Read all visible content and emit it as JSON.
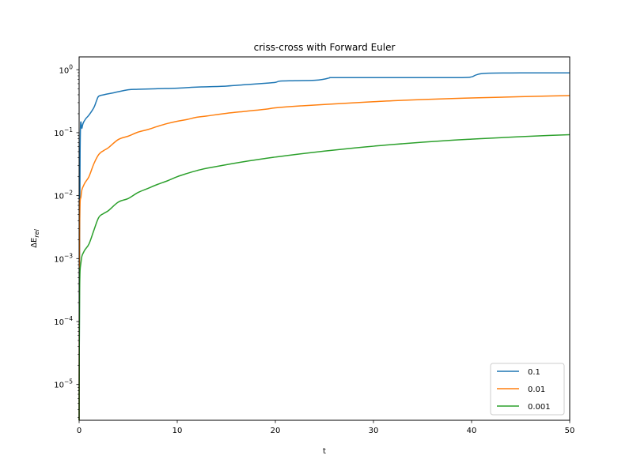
{
  "chart_data": {
    "type": "line",
    "title": "criss-cross with Forward Euler",
    "xlabel": "t",
    "ylabel": "ΔE",
    "ylabel_sub": "rel",
    "xlim": [
      0,
      50
    ],
    "ylim": [
      2.7e-06,
      1.6
    ],
    "yscale": "log",
    "grid": false,
    "legend_position": "lower-right",
    "x_ticks": [
      {
        "value": 0,
        "label": "0"
      },
      {
        "value": 10,
        "label": "10"
      },
      {
        "value": 20,
        "label": "20"
      },
      {
        "value": 30,
        "label": "30"
      },
      {
        "value": 40,
        "label": "40"
      },
      {
        "value": 50,
        "label": "50"
      }
    ],
    "y_ticks": [
      {
        "value": 1e-05,
        "base": "10",
        "exp": "−5"
      },
      {
        "value": 0.0001,
        "base": "10",
        "exp": "−4"
      },
      {
        "value": 0.001,
        "base": "10",
        "exp": "−3"
      },
      {
        "value": 0.01,
        "base": "10",
        "exp": "−2"
      },
      {
        "value": 0.1,
        "base": "10",
        "exp": "−1"
      },
      {
        "value": 1,
        "base": "10",
        "exp": "0"
      }
    ],
    "series": [
      {
        "name": "0.1",
        "color": "#1f77b4",
        "x": [
          0,
          0.1,
          0.3,
          0.6,
          1.0,
          1.5,
          1.8,
          2.0,
          2.5,
          3.5,
          5.0,
          6.0,
          8.0,
          10.0,
          12.0,
          15.0,
          17.0,
          19.0,
          20.0,
          20.5,
          22.0,
          24.0,
          25.0,
          25.5,
          26.0,
          30.0,
          35.0,
          39.0,
          40.0,
          40.5,
          41.5,
          45.0,
          50.0
        ],
        "y": [
          2.7e-06,
          0.05,
          0.12,
          0.16,
          0.19,
          0.25,
          0.33,
          0.38,
          0.4,
          0.43,
          0.48,
          0.49,
          0.5,
          0.51,
          0.53,
          0.55,
          0.58,
          0.61,
          0.63,
          0.66,
          0.67,
          0.68,
          0.71,
          0.74,
          0.75,
          0.75,
          0.75,
          0.75,
          0.77,
          0.83,
          0.88,
          0.89,
          0.89
        ]
      },
      {
        "name": "0.01",
        "color": "#ff7f0e",
        "x": [
          0,
          0.05,
          0.2,
          0.5,
          1.0,
          1.5,
          2.0,
          2.5,
          3.0,
          4.0,
          5.0,
          6.0,
          7.0,
          8.0,
          9.0,
          10.0,
          11.0,
          12.0,
          13.0,
          15.0,
          17.0,
          19.0,
          20.0,
          22.0,
          25.0,
          28.0,
          30.0,
          32.0,
          35.0,
          38.0,
          40.0,
          42.0,
          45.0,
          48.0,
          50.0
        ],
        "y": [
          2.7e-06,
          0.003,
          0.01,
          0.015,
          0.02,
          0.032,
          0.045,
          0.052,
          0.058,
          0.078,
          0.088,
          0.102,
          0.112,
          0.126,
          0.14,
          0.152,
          0.162,
          0.176,
          0.184,
          0.203,
          0.219,
          0.236,
          0.248,
          0.263,
          0.281,
          0.298,
          0.31,
          0.322,
          0.336,
          0.349,
          0.356,
          0.363,
          0.373,
          0.383,
          0.388
        ]
      },
      {
        "name": "0.001",
        "color": "#2ca02c",
        "x": [
          0,
          0.05,
          0.2,
          0.5,
          1.0,
          1.5,
          2.0,
          2.5,
          3.0,
          4.0,
          5.0,
          6.0,
          7.0,
          8.0,
          9.0,
          10.0,
          11.0,
          12.0,
          13.0,
          15.0,
          17.0,
          19.0,
          20.0,
          22.0,
          25.0,
          28.0,
          30.0,
          32.0,
          35.0,
          38.0,
          40.0,
          42.0,
          45.0,
          48.0,
          50.0
        ],
        "y": [
          2.7e-06,
          0.0003,
          0.0009,
          0.0013,
          0.0017,
          0.0028,
          0.0045,
          0.0052,
          0.0058,
          0.0079,
          0.009,
          0.0112,
          0.013,
          0.0151,
          0.0172,
          0.02,
          0.0225,
          0.025,
          0.0272,
          0.031,
          0.035,
          0.039,
          0.041,
          0.045,
          0.051,
          0.057,
          0.061,
          0.065,
          0.0705,
          0.076,
          0.079,
          0.082,
          0.0865,
          0.0905,
          0.093
        ]
      }
    ]
  }
}
